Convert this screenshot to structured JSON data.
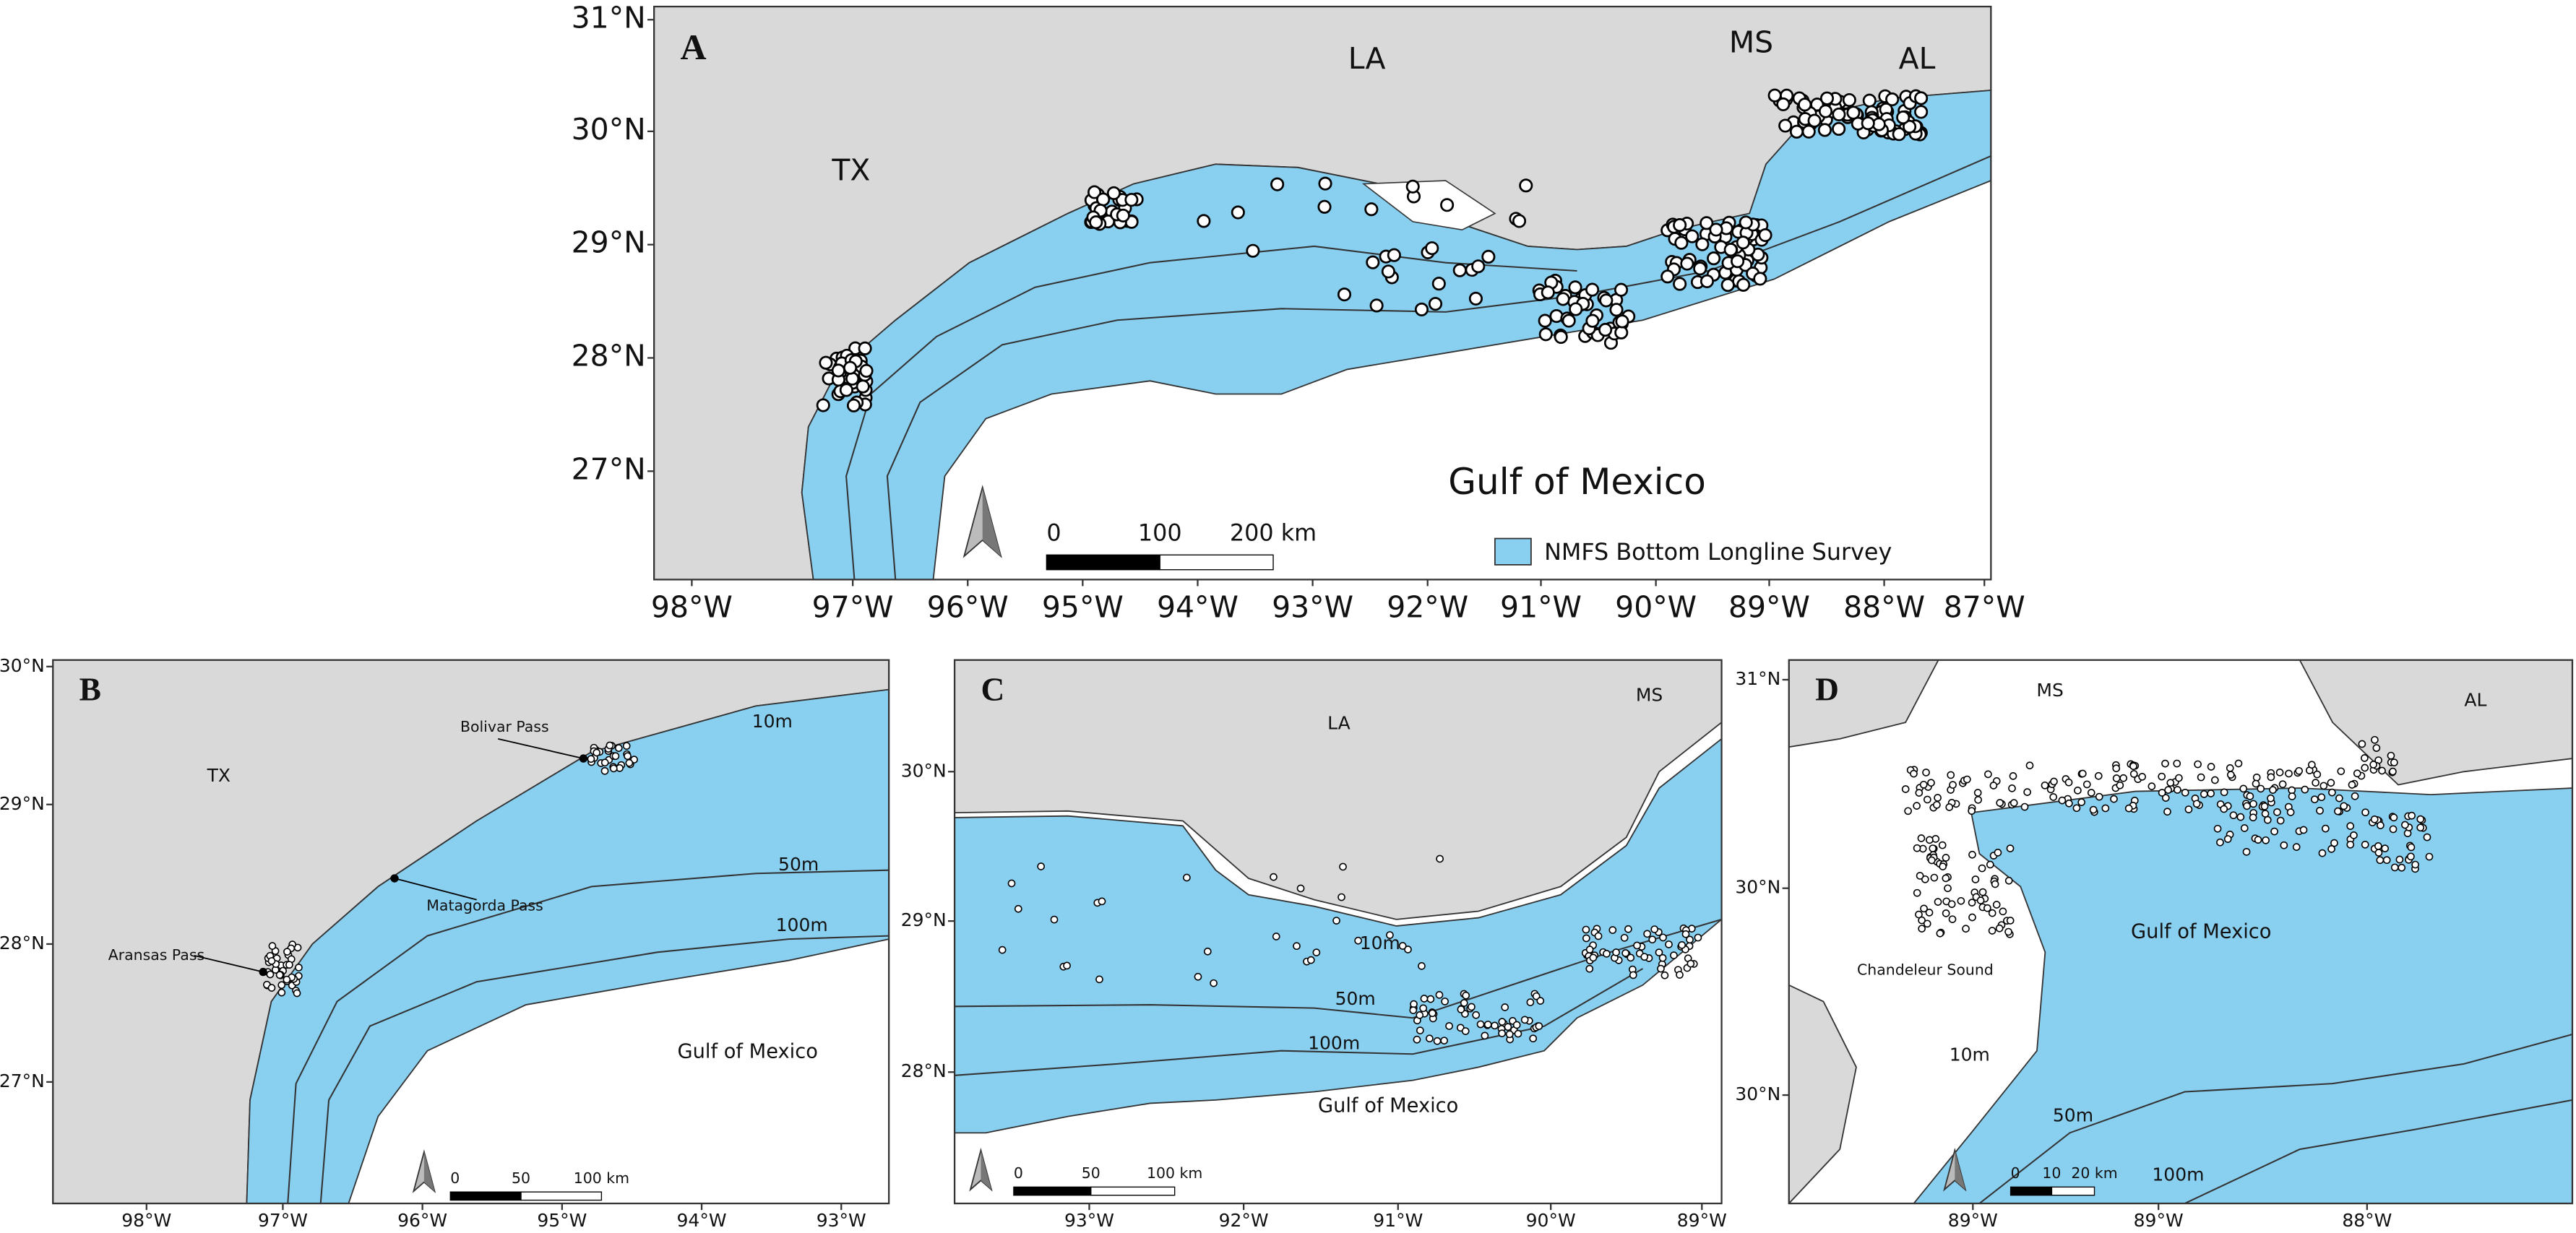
{
  "panels": [
    {
      "letter": "A",
      "xticks": [
        "98°W",
        "97°W",
        "96°W",
        "95°W",
        "94°W",
        "93°W",
        "92°W",
        "91°W",
        "90°W",
        "89°W",
        "88°W",
        "87°W"
      ],
      "yticks": [
        "31°N",
        "30°N",
        "29°N",
        "28°N",
        "27°N"
      ],
      "labels": [
        "TX",
        "LA",
        "MS",
        "AL",
        "Gulf of Mexico"
      ],
      "scale": [
        "0",
        "100",
        "200 km"
      ],
      "legend": "NMFS Bottom Longline Survey"
    },
    {
      "letter": "B",
      "xticks": [
        "98°W",
        "97°W",
        "96°W",
        "95°W",
        "94°W",
        "93°W"
      ],
      "yticks": [
        "30°N",
        "29°N",
        "28°N",
        "27°N"
      ],
      "labels": [
        "TX",
        "Bolivar Pass",
        "Matagorda Pass",
        "Aransas Pass",
        "Gulf of Mexico",
        "10m",
        "50m",
        "100m"
      ],
      "scale": [
        "0",
        "50",
        "100 km"
      ]
    },
    {
      "letter": "C",
      "xticks": [
        "93°W",
        "92°W",
        "91°W",
        "90°W",
        "89°W"
      ],
      "yticks": [
        "30°N",
        "29°N",
        "28°N"
      ],
      "labels": [
        "LA",
        "MS",
        "10m",
        "50m",
        "100m",
        "Gulf of Mexico"
      ],
      "scale": [
        "0",
        "50",
        "100 km"
      ]
    },
    {
      "letter": "D",
      "xticks": [
        "89°W",
        "89°W",
        "88°W"
      ],
      "yticks": [
        "31°N",
        "30°N",
        "30°N"
      ],
      "labels": [
        "MS",
        "AL",
        "Gulf of Mexico",
        "Chandeleur Sound",
        "10m",
        "50m",
        "100m"
      ],
      "scale": [
        "0",
        "10",
        "20 km"
      ]
    }
  ]
}
